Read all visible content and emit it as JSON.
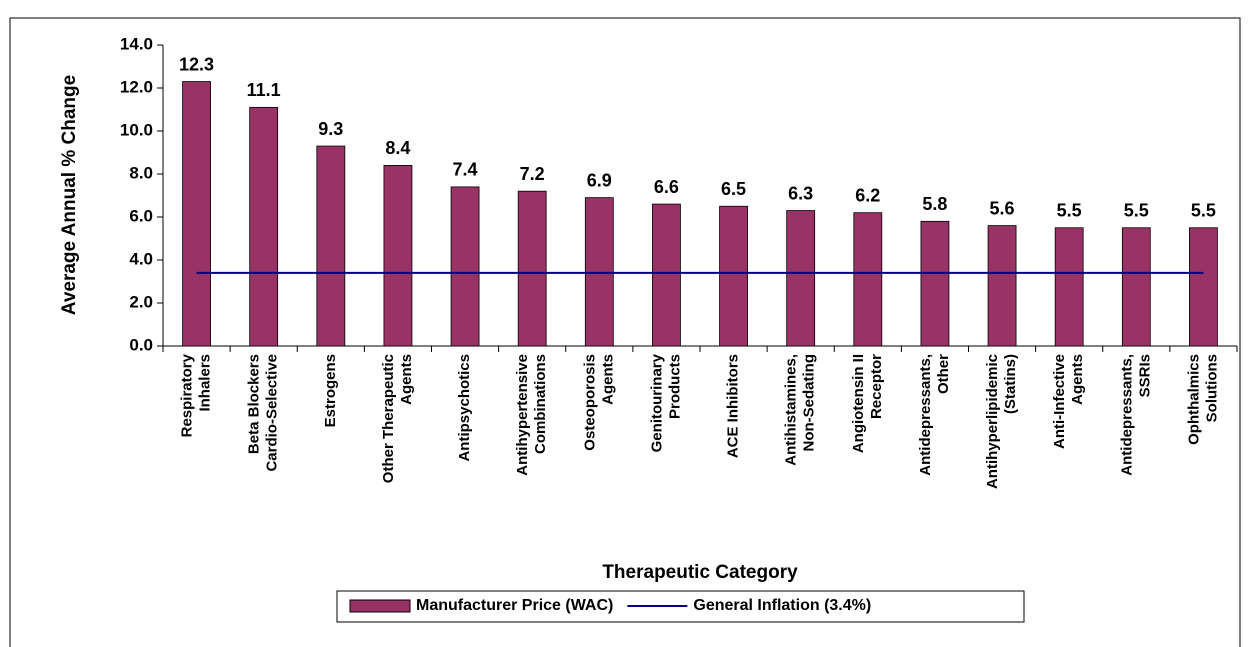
{
  "chart_data": {
    "type": "bar",
    "x_label": "Therapeutic Category",
    "y_label": "Average Annual % Change",
    "categories": [
      [
        "Respiratory",
        "Inhalers"
      ],
      [
        "Beta Blockers",
        "Cardio-Selective"
      ],
      [
        "Estrogens"
      ],
      [
        "Other Therapeutic",
        "Agents"
      ],
      [
        "Antipsychotics"
      ],
      [
        "Antihypertensive",
        "Combinations"
      ],
      [
        "Osteoporosis",
        "Agents"
      ],
      [
        "Genitourinary",
        "Products"
      ],
      [
        "ACE Inhibitors"
      ],
      [
        "Antihistamines,",
        "Non-Sedating"
      ],
      [
        "Angiotensin II",
        "Receptor"
      ],
      [
        "Antidepressants,",
        "Other"
      ],
      [
        "Antihyperlipidemic",
        "(Statins)"
      ],
      [
        "Anti-Infective",
        "Agents"
      ],
      [
        "Antidepressants,",
        "SSRIs"
      ],
      [
        "Ophthalmics",
        "Solutions"
      ]
    ],
    "series": [
      {
        "name": "Manufacturer Price (WAC)",
        "type": "bar",
        "color": "#993366",
        "values": [
          12.3,
          11.1,
          9.3,
          8.4,
          7.4,
          7.2,
          6.9,
          6.6,
          6.5,
          6.3,
          6.2,
          5.8,
          5.6,
          5.5,
          5.5,
          5.5
        ]
      },
      {
        "name": "General Inflation (3.4%)",
        "type": "line",
        "color": "#000080",
        "values": [
          3.4,
          3.4,
          3.4,
          3.4,
          3.4,
          3.4,
          3.4,
          3.4,
          3.4,
          3.4,
          3.4,
          3.4,
          3.4,
          3.4,
          3.4,
          3.4
        ]
      }
    ],
    "ylim": [
      0,
      14
    ],
    "yticks": [
      {
        "value": 0,
        "label": "0.0"
      },
      {
        "value": 2,
        "label": "2.0"
      },
      {
        "value": 4,
        "label": "4.0"
      },
      {
        "value": 6,
        "label": "6.0"
      },
      {
        "value": 8,
        "label": "8.0"
      },
      {
        "value": 10,
        "label": "10.0"
      },
      {
        "value": 12,
        "label": "12.0"
      },
      {
        "value": 14,
        "label": "14.0"
      }
    ],
    "grid": false,
    "legend": "bottom"
  }
}
